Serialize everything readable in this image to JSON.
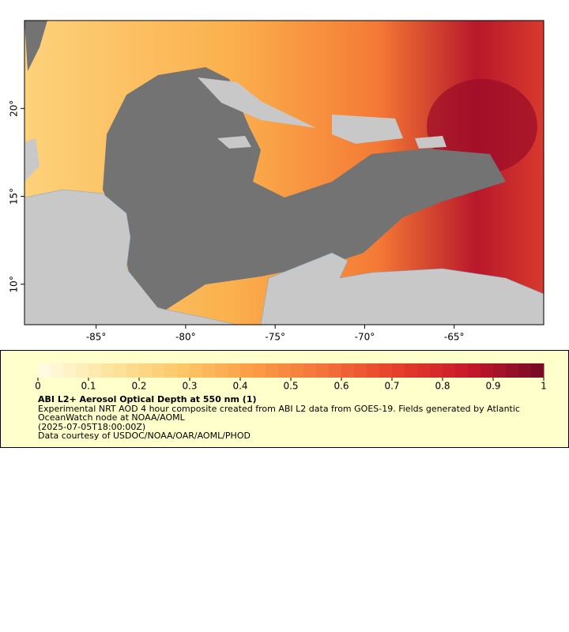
{
  "map": {
    "xlim": [
      -89,
      -60
    ],
    "ylim": [
      7.7,
      25
    ],
    "xticks": [
      {
        "value": -85,
        "label": "-85°"
      },
      {
        "value": -80,
        "label": "-80°"
      },
      {
        "value": -75,
        "label": "-75°"
      },
      {
        "value": -70,
        "label": "-70°"
      },
      {
        "value": -65,
        "label": "-65°"
      }
    ],
    "yticks": [
      {
        "value": 10,
        "label": "10°"
      },
      {
        "value": 15,
        "label": "15°"
      },
      {
        "value": 20,
        "label": "20°"
      }
    ]
  },
  "colorbar": {
    "lim": [
      0,
      1
    ],
    "ticks": [
      0,
      0.1,
      0.2,
      0.3,
      0.4,
      0.5,
      0.6,
      0.7,
      0.8,
      0.9,
      1
    ],
    "colors": [
      "#fffbe0",
      "#fde39a",
      "#fdc565",
      "#fb9b45",
      "#f4703a",
      "#e5402a",
      "#c81a2a",
      "#7a0a26"
    ],
    "steps": 40
  },
  "legend": {
    "title": "ABI L2+ Aerosol Optical Depth at 550 nm (1)",
    "description": "Experimental NRT AOD 4 hour composite created from ABI L2 data from GOES-19. Fields generated by Atlantic OceanWatch node at NOAA/AOML",
    "time": "(2025-07-05T18:00:00Z)",
    "credit": "Data courtesy of USDOC/NOAA/OAR/AOML/PHOD"
  }
}
